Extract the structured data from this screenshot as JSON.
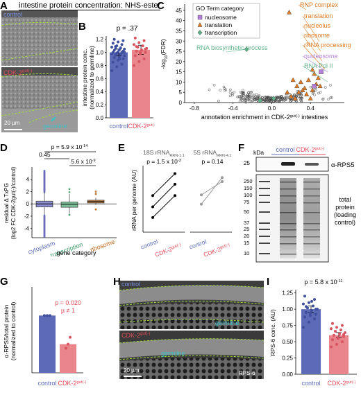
{
  "panels": {
    "A": {
      "letter": "A",
      "title": "intestine protein concentration: NHS-ester",
      "label_control": "control",
      "label_cdk": "CDK-2",
      "label_cdk_sup": "gut(-)",
      "scalebar": "20 µm",
      "germline": "germline"
    },
    "B": {
      "letter": "B",
      "pvalue": "p = .37"
    },
    "C": {
      "letter": "C",
      "legend_title": "GO Term category",
      "legend_items": [
        "nucleosome",
        "translation",
        "transcription"
      ],
      "annotations": [
        "RNP complex",
        "translation",
        "nucleolus",
        "ribosome",
        "rRNA processing",
        "nucleosome",
        "RNA Pol II",
        "RNA biosynthetic process"
      ]
    },
    "D": {
      "letter": "D",
      "p_top": "p = 5.9 x 10",
      "p_top_exp": "-14",
      "p_mid": "0.45",
      "p_low": "5.6 x 10",
      "p_low_exp": "-9"
    },
    "E": {
      "letter": "E",
      "title_left": "18S rRNA",
      "title_left_sub": "RRN-1.1",
      "title_right": "5S rRNA",
      "title_right_sub": "RRN-4.1",
      "p_left": "p = 1.5 x 10",
      "p_left_exp": "-3",
      "p_right": "p = 0.14"
    },
    "F": {
      "letter": "F",
      "kda": "kDa",
      "rps5": "α-RPS5",
      "total_protein": "total\nprotein\n(loading\ncontrol)",
      "ladder": [
        "25",
        "250",
        "150",
        "100",
        "75",
        "50",
        "37",
        "25",
        "20",
        "15",
        "10"
      ],
      "label_control": "control",
      "label_cdk": "CDK-2",
      "label_cdk_sup": "gut(-)"
    },
    "G": {
      "letter": "G",
      "p": "p = 0.020",
      "mu": "µ ≠ 1"
    },
    "H": {
      "letter": "H",
      "label_control": "control",
      "label_cdk": "CDK-2",
      "label_cdk_sup": "gut(-)",
      "germline": "germline",
      "scalebar": "20 µm",
      "stain": "RPS-6"
    },
    "I": {
      "letter": "I",
      "p": "p = 5.8 x 10",
      "p_exp": "-11"
    }
  },
  "colors": {
    "control": "#5b6bb5",
    "cdk": "#e8868c",
    "translation": "#e07b25",
    "nucleosome": "#b77fd6",
    "transcription": "#5fb28a",
    "germline": "#3fc1c9",
    "green_dash": "#9fdc3f"
  },
  "chart_data": [
    {
      "type": "bar",
      "panel": "B",
      "title": "",
      "ylabel": "intestine protein conc. (normalized to germline)",
      "categories": [
        "control",
        "CDK-2gut(-)"
      ],
      "values": [
        1.0,
        1.04
      ],
      "errors": [
        0.05,
        0.07
      ],
      "ylim": [
        0.0,
        1.25
      ],
      "yticks": [
        "0.0",
        "0.2",
        "0.4",
        "0.6",
        "0.8",
        "1.0",
        "1.2"
      ],
      "points_control": [
        0.72,
        0.78,
        0.82,
        0.85,
        0.88,
        0.9,
        0.92,
        0.93,
        0.95,
        0.96,
        0.97,
        0.98,
        0.99,
        1.0,
        1.0,
        1.01,
        1.02,
        1.03,
        1.04,
        1.05,
        1.06,
        1.07,
        1.08,
        1.1,
        1.12,
        1.14,
        1.16,
        1.18,
        1.2,
        0.9,
        1.0,
        1.09
      ],
      "points_cdk": [
        0.8,
        0.86,
        0.9,
        0.95,
        0.98,
        1.0,
        1.02,
        1.04,
        1.06,
        1.08,
        1.1,
        1.12,
        1.15,
        1.18,
        1.22,
        1.0,
        1.05,
        1.09
      ]
    },
    {
      "type": "scatter",
      "panel": "C",
      "xlabel": "annotation enrichment in CDK-2gut(-) intestines",
      "ylabel": "-log10(FDR)",
      "xlim": [
        -0.9,
        0.75
      ],
      "ylim": [
        0,
        48
      ],
      "xticks": [
        "-0.8",
        "-0.4",
        "0.0",
        "0.4"
      ],
      "yticks": [
        "0",
        "5",
        "10",
        "15",
        "20",
        "25",
        "30",
        "35",
        "40",
        "45"
      ],
      "series": [
        {
          "name": "translation",
          "x": [
            0.18,
            0.22,
            0.26,
            0.3,
            0.34,
            0.38,
            0.42,
            0.46,
            0.5,
            0.28,
            0.2,
            0.36,
            0.44,
            0.24,
            0.48,
            0.32,
            0.4,
            0.16,
            0.42
          ],
          "y": [
            44,
            11,
            8,
            10,
            7,
            11,
            6,
            9,
            8,
            5,
            3,
            4,
            14,
            2,
            12,
            6,
            2,
            5,
            16
          ]
        },
        {
          "name": "nucleosome",
          "x": [
            0.51,
            0.44
          ],
          "y": [
            15,
            8
          ]
        },
        {
          "name": "transcription",
          "x": [
            -0.26,
            -0.12,
            0.02
          ],
          "y": [
            26,
            1,
            2
          ]
        }
      ]
    },
    {
      "type": "boxplot",
      "panel": "D",
      "xlabel": "gene category",
      "ylabel": "residual Δ TxPG (log2 FC CDK-2gut(-)/control)",
      "categories": [
        "cytoplasm",
        "transcription",
        "ribosome"
      ],
      "ylim": [
        -5.5,
        6
      ],
      "yticks": [
        "-4",
        "-2",
        "0",
        "2",
        "4"
      ],
      "boxes": [
        {
          "q1": -0.5,
          "median": 0.0,
          "q3": 0.45,
          "whisker_low": -1.9,
          "whisker_high": 1.8
        },
        {
          "q1": -0.55,
          "median": -0.05,
          "q3": 0.3,
          "whisker_low": -1.6,
          "whisker_high": 1.6
        },
        {
          "q1": 0.15,
          "median": 0.38,
          "q3": 0.6,
          "whisker_low": -0.15,
          "whisker_high": 1.0
        }
      ]
    },
    {
      "type": "line",
      "panel": "E-18S",
      "title": "18S rRNA",
      "ylabel": "rRNA per genome (AU)",
      "categories": [
        "control",
        "CDK-2gut(-)"
      ],
      "series": [
        {
          "values": [
            0.55,
            0.88
          ]
        },
        {
          "values": [
            0.38,
            0.72
          ]
        },
        {
          "values": [
            0.22,
            0.55
          ]
        }
      ]
    },
    {
      "type": "line",
      "panel": "E-5S",
      "title": "5S rRNA",
      "categories": [
        "control",
        "CDK-2gut(-)"
      ],
      "series": [
        {
          "values": [
            0.42,
            0.82
          ]
        },
        {
          "values": [
            0.56,
            0.76
          ]
        }
      ]
    },
    {
      "type": "bar",
      "panel": "G",
      "ylabel": "α-RPS5/total protein (normalized to control)",
      "categories": [
        "control",
        "CDK-2gut(-)"
      ],
      "values": [
        1.0,
        0.5
      ],
      "ylim": [
        0,
        1.5
      ],
      "points_control": [
        1.0,
        1.0,
        1.0
      ],
      "points_cdk": [
        0.43,
        0.5,
        0.62
      ]
    },
    {
      "type": "bar",
      "panel": "I",
      "ylabel": "RPS-6 conc. (AU)",
      "categories": [
        "control",
        "CDK-2gut(-)"
      ],
      "values": [
        1.0,
        0.6
      ],
      "errors": [
        0.05,
        0.04
      ],
      "ylim": [
        0,
        1.3
      ],
      "yticks": [
        "0.00",
        "0.25",
        "0.50",
        "0.75",
        "1.00",
        "1.25"
      ],
      "points_control": [
        0.72,
        0.8,
        0.85,
        0.88,
        0.9,
        0.92,
        0.95,
        0.98,
        1.0,
        1.02,
        1.05,
        1.08,
        1.1,
        1.15,
        1.2,
        0.94,
        1.0,
        1.04,
        1.12
      ],
      "points_cdk": [
        0.42,
        0.46,
        0.5,
        0.53,
        0.56,
        0.58,
        0.6,
        0.62,
        0.64,
        0.66,
        0.68,
        0.7,
        0.72,
        0.75,
        0.78,
        0.55,
        0.61
      ]
    }
  ]
}
